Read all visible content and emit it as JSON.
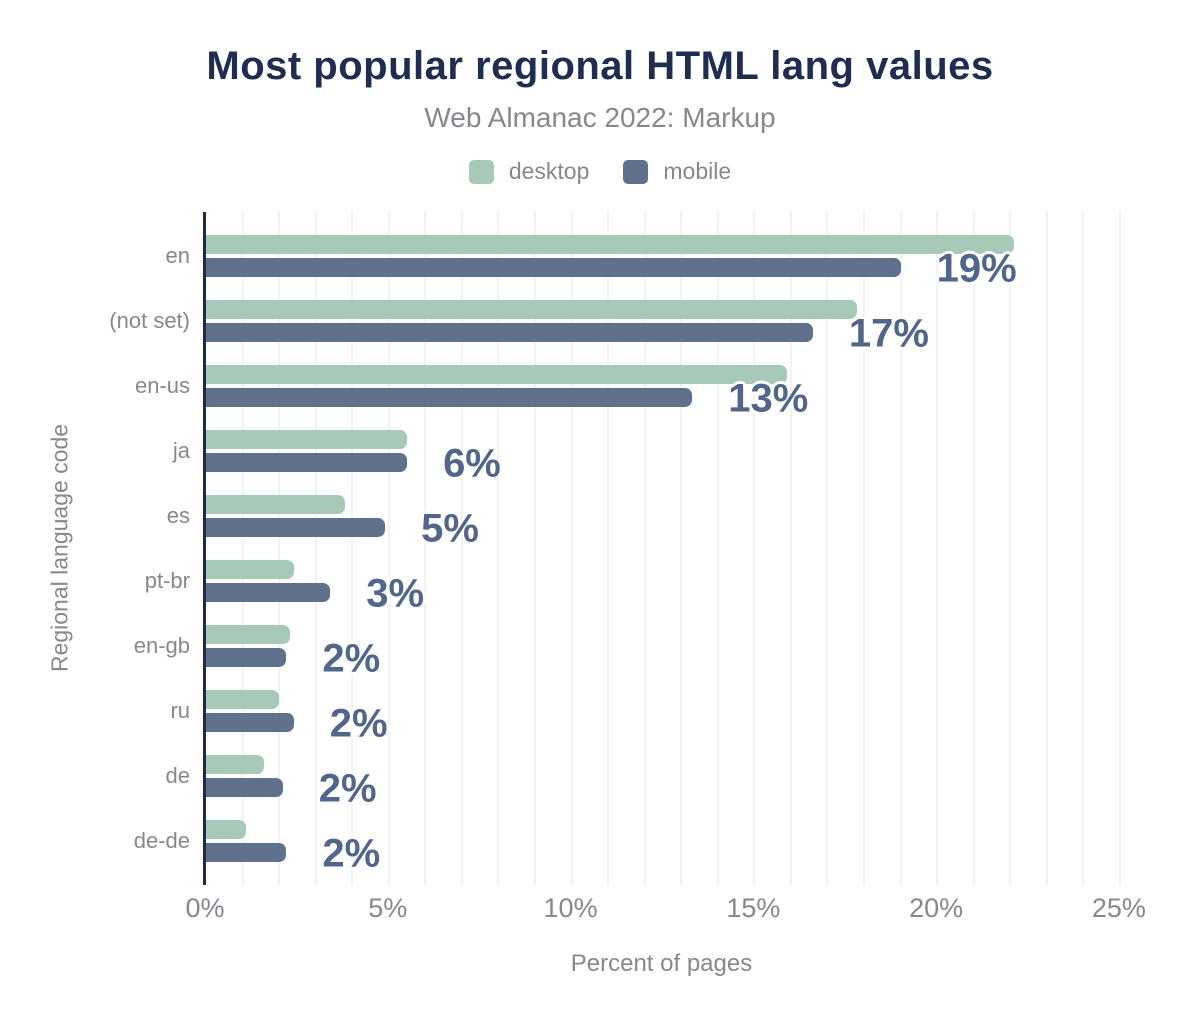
{
  "header": {
    "title": "Most popular regional HTML lang values",
    "subtitle": "Web Almanac 2022: Markup"
  },
  "legend": {
    "items": [
      {
        "label": "desktop",
        "color": "#a7cab8"
      },
      {
        "label": "mobile",
        "color": "#5f718c"
      }
    ]
  },
  "axes": {
    "x_title": "Percent of pages",
    "y_title": "Regional language code",
    "x_ticks": [
      {
        "label": "0%",
        "value": 0
      },
      {
        "label": "5%",
        "value": 5
      },
      {
        "label": "10%",
        "value": 10
      },
      {
        "label": "15%",
        "value": 15
      },
      {
        "label": "20%",
        "value": 20
      },
      {
        "label": "25%",
        "value": 25
      }
    ],
    "x_max": 25.85,
    "grid_step_percent": 1
  },
  "chart_data": {
    "type": "bar",
    "orientation": "horizontal",
    "title": "Most popular regional HTML lang values",
    "subtitle": "Web Almanac 2022: Markup",
    "xlabel": "Percent of pages",
    "ylabel": "Regional language code",
    "xlim": [
      0,
      25.85
    ],
    "grid": true,
    "legend_position": "top",
    "categories": [
      "en",
      "(not set)",
      "en-us",
      "ja",
      "es",
      "pt-br",
      "en-gb",
      "ru",
      "de",
      "de-de"
    ],
    "series": [
      {
        "name": "desktop",
        "color": "#a7cab8",
        "values": [
          22.1,
          17.8,
          15.9,
          5.5,
          3.8,
          2.4,
          2.3,
          2.0,
          1.6,
          1.1
        ]
      },
      {
        "name": "mobile",
        "color": "#5f718c",
        "values": [
          19.0,
          16.6,
          13.3,
          5.5,
          4.9,
          3.4,
          2.2,
          2.4,
          2.1,
          2.2
        ]
      }
    ],
    "value_labels": [
      "19%",
      "17%",
      "13%",
      "6%",
      "5%",
      "3%",
      "2%",
      "2%",
      "2%",
      "2%"
    ]
  },
  "colors": {
    "title": "#1f2d51",
    "axis_line": "#1b2b4d",
    "muted_text": "#85888f",
    "value_label": "#52658a",
    "gridline": "#f2f2f4",
    "desktop": "#a7cab8",
    "mobile": "#5f718c",
    "background": "#ffffff"
  }
}
